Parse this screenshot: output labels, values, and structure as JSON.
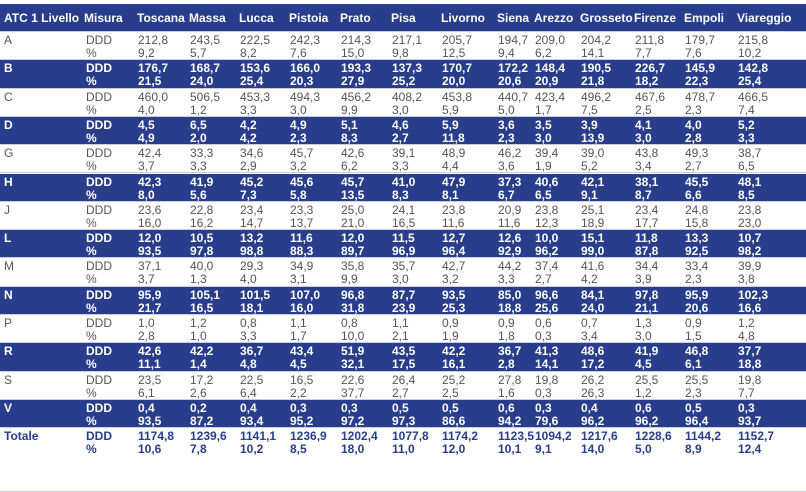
{
  "table": {
    "header": [
      "ATC 1 Livello",
      "Misura",
      "Toscana",
      "Massa",
      "Lucca",
      "Pistoia",
      "Prato",
      "Pisa",
      "Livorno",
      "Siena",
      "Arezzo",
      "Grosseto",
      "Firenze",
      "Empoli",
      "Viareggio"
    ],
    "measures": [
      "DDD",
      "%"
    ],
    "rows": [
      {
        "atc": "A",
        "ddd": [
          "212,8",
          "243,5",
          "222,5",
          "242,3",
          "214,3",
          "217,1",
          "205,7",
          "194,7",
          "209,0",
          "204,2",
          "211,8",
          "179,7",
          "215,8"
        ],
        "pct": [
          "9,2",
          "5,7",
          "8,2",
          "7,6",
          "15,0",
          "9,8",
          "12,5",
          "9,4",
          "6,2",
          "14,1",
          "7,7",
          "7,6",
          "10,2"
        ]
      },
      {
        "atc": "B",
        "ddd": [
          "176,7",
          "168,7",
          "153,6",
          "166,0",
          "193,3",
          "137,3",
          "170,7",
          "172,2",
          "148,4",
          "190,5",
          "226,7",
          "145,9",
          "142,8"
        ],
        "pct": [
          "21,5",
          "24,0",
          "25,4",
          "20,3",
          "27,9",
          "25,2",
          "20,0",
          "20,6",
          "20,9",
          "21,8",
          "18,2",
          "22,3",
          "25,4"
        ]
      },
      {
        "atc": "C",
        "ddd": [
          "460,0",
          "506,5",
          "453,3",
          "494,3",
          "456,2",
          "408,2",
          "453,8",
          "440,7",
          "423,4",
          "496,2",
          "467,6",
          "478,7",
          "466,5"
        ],
        "pct": [
          "4,0",
          "1,2",
          "3,3",
          "3,0",
          "9,9",
          "3,0",
          "5,9",
          "5,0",
          "1,7",
          "7,5",
          "2,5",
          "2,3",
          "7,4"
        ]
      },
      {
        "atc": "D",
        "ddd": [
          "4,5",
          "6,5",
          "4,2",
          "4,9",
          "5,1",
          "4,6",
          "5,9",
          "3,6",
          "3,5",
          "3,9",
          "4,1",
          "4,0",
          "5,2"
        ],
        "pct": [
          "4,9",
          "2,0",
          "4,2",
          "2,3",
          "8,3",
          "2,7",
          "11,8",
          "2,3",
          "3,0",
          "13,9",
          "3,0",
          "2,8",
          "3,3"
        ]
      },
      {
        "atc": "G",
        "ddd": [
          "42,4",
          "33,3",
          "34,6",
          "45,7",
          "42,6",
          "39,1",
          "48,9",
          "46,2",
          "39,4",
          "39,0",
          "43,8",
          "49,3",
          "38,7"
        ],
        "pct": [
          "3,7",
          "3,3",
          "2,9",
          "3,2",
          "6,2",
          "3,3",
          "4,4",
          "3,6",
          "1,9",
          "5,2",
          "3,4",
          "2,7",
          "6,5"
        ]
      },
      {
        "atc": "H",
        "ddd": [
          "42,3",
          "41,9",
          "45,2",
          "45,6",
          "45,7",
          "41,0",
          "47,9",
          "37,3",
          "40,6",
          "42,1",
          "38,1",
          "45,5",
          "48,1"
        ],
        "pct": [
          "8,0",
          "5,6",
          "7,3",
          "5,8",
          "13,5",
          "8,3",
          "8,1",
          "6,7",
          "6,5",
          "9,1",
          "8,7",
          "6,6",
          "8,5"
        ]
      },
      {
        "atc": "J",
        "ddd": [
          "23,6",
          "22,8",
          "23,4",
          "23,3",
          "25,0",
          "24,1",
          "23,8",
          "20,9",
          "23,8",
          "25,1",
          "23,4",
          "24,8",
          "23,8"
        ],
        "pct": [
          "16,0",
          "16,2",
          "14,7",
          "13,7",
          "21,0",
          "16,5",
          "11,6",
          "11,6",
          "12,3",
          "18,9",
          "17,7",
          "15,8",
          "23,0"
        ]
      },
      {
        "atc": "L",
        "ddd": [
          "12,0",
          "10,5",
          "13,2",
          "11,6",
          "12,0",
          "11,5",
          "12,7",
          "12,6",
          "10,0",
          "15,1",
          "11,8",
          "13,3",
          "10,7"
        ],
        "pct": [
          "93,5",
          "97,8",
          "98,8",
          "88,3",
          "89,7",
          "96,9",
          "96,4",
          "92,9",
          "96,2",
          "99,0",
          "87,8",
          "92,5",
          "98,2"
        ]
      },
      {
        "atc": "M",
        "ddd": [
          "37,1",
          "40,0",
          "29,3",
          "34,9",
          "35,8",
          "35,7",
          "42,7",
          "44,2",
          "37,4",
          "41,6",
          "34,4",
          "33,4",
          "39,9"
        ],
        "pct": [
          "3,7",
          "1,3",
          "4,0",
          "3,1",
          "9,9",
          "3,0",
          "3,2",
          "3,3",
          "2,7",
          "4,2",
          "3,9",
          "2,3",
          "3,8"
        ]
      },
      {
        "atc": "N",
        "ddd": [
          "95,9",
          "105,1",
          "101,5",
          "107,0",
          "96,8",
          "87,7",
          "93,5",
          "85,0",
          "96,6",
          "84,1",
          "97,8",
          "95,9",
          "102,3"
        ],
        "pct": [
          "21,7",
          "16,5",
          "18,1",
          "16,0",
          "31,8",
          "23,9",
          "25,3",
          "18,8",
          "25,6",
          "24,0",
          "21,1",
          "20,6",
          "16,6"
        ]
      },
      {
        "atc": "P",
        "ddd": [
          "1,0",
          "1,2",
          "0,8",
          "1,1",
          "0,8",
          "1,1",
          "0,9",
          "0,9",
          "0,6",
          "0,7",
          "1,3",
          "0,9",
          "1,2"
        ],
        "pct": [
          "2,8",
          "1,0",
          "3,3",
          "1,7",
          "10,0",
          "2,1",
          "1,9",
          "1,8",
          "0,3",
          "3,4",
          "3,0",
          "1,5",
          "4,8"
        ]
      },
      {
        "atc": "R",
        "ddd": [
          "42,6",
          "42,2",
          "36,7",
          "43,4",
          "51,9",
          "43,5",
          "42,2",
          "36,7",
          "41,3",
          "48,6",
          "41,9",
          "46,8",
          "37,7"
        ],
        "pct": [
          "11,1",
          "1,4",
          "4,8",
          "4,5",
          "32,1",
          "17,5",
          "16,1",
          "2,8",
          "14,1",
          "17,2",
          "4,5",
          "6,1",
          "18,8"
        ]
      },
      {
        "atc": "S",
        "ddd": [
          "23,5",
          "17,2",
          "22,5",
          "16,5",
          "22,6",
          "26,4",
          "25,2",
          "27,8",
          "19,8",
          "26,2",
          "25,5",
          "25,5",
          "19,8"
        ],
        "pct": [
          "6,1",
          "2,6",
          "6,4",
          "2,2",
          "37,7",
          "2,7",
          "2,5",
          "1,6",
          "0,3",
          "26,3",
          "1,2",
          "2,3",
          "7,7"
        ]
      },
      {
        "atc": "V",
        "ddd": [
          "0,4",
          "0,2",
          "0,4",
          "0,3",
          "0,3",
          "0,5",
          "0,5",
          "0,6",
          "0,3",
          "0,4",
          "0,6",
          "0,5",
          "0,3"
        ],
        "pct": [
          "93,5",
          "87,2",
          "93,4",
          "95,2",
          "97,2",
          "97,3",
          "86,6",
          "94,2",
          "79,6",
          "96,2",
          "96,2",
          "96,4",
          "93,7"
        ]
      },
      {
        "atc": "Totale",
        "ddd": [
          "1174,8",
          "1239,6",
          "1141,1",
          "1236,9",
          "1202,4",
          "1077,8",
          "1174,2",
          "1123,5",
          "1094,2",
          "1217,6",
          "1228,6",
          "1144,2",
          "1152,7"
        ],
        "pct": [
          "10,6",
          "7,8",
          "10,2",
          "8,5",
          "18,0",
          "11,0",
          "12,0",
          "10,1",
          "9,1",
          "14,0",
          "5,0",
          "8,9",
          "12,4"
        ]
      }
    ]
  }
}
